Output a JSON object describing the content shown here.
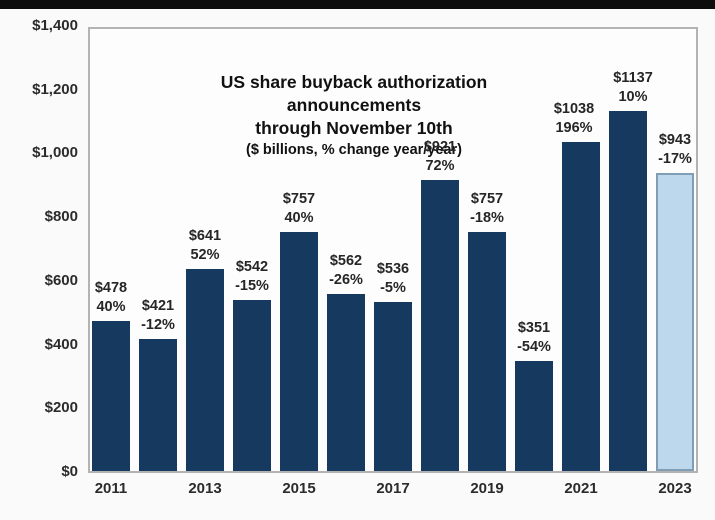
{
  "page": {
    "background": "#fafafa",
    "top_strip_color": "#0d0d0d"
  },
  "chart_data": {
    "type": "bar",
    "title": "US share buyback authorization announcements through November 10th",
    "subtitle": "($ billions, % change year/year)",
    "title_lines": [
      "US share buyback authorization",
      "announcements",
      "through November 10th",
      "($ billions, %  change year/year)"
    ],
    "categories": [
      "2011",
      "2012",
      "2013",
      "2014",
      "2015",
      "2016",
      "2017",
      "2018",
      "2019",
      "2020",
      "2021",
      "2022",
      "2023"
    ],
    "values": [
      478,
      421,
      641,
      542,
      757,
      562,
      536,
      921,
      757,
      351,
      1038,
      1137,
      943
    ],
    "value_labels": [
      "$478",
      "$421",
      "$641",
      "$542",
      "$757",
      "$562",
      "$536",
      "$921",
      "$757",
      "$351",
      "$1038",
      "$1137",
      "$943"
    ],
    "pct_change_labels": [
      "40%",
      "-12%",
      "52%",
      "-15%",
      "40%",
      "-26%",
      "-5%",
      "72%",
      "-18%",
      "-54%",
      "196%",
      "10%",
      "-17%"
    ],
    "x_tick_labels": [
      "2011",
      "2013",
      "2015",
      "2017",
      "2019",
      "2021",
      "2023"
    ],
    "y_ticks": [
      0,
      200,
      400,
      600,
      800,
      1000,
      1200,
      1400
    ],
    "y_tick_labels": [
      "$0",
      "$200",
      "$400",
      "$600",
      "$800",
      "$1,000",
      "$1,200",
      "$1,400"
    ],
    "ylim": [
      0,
      1400
    ],
    "grid": false,
    "legend": null,
    "highlight_index": 12,
    "colors": {
      "bar_fill": "#16395f",
      "highlight_fill": "#bdd7ec",
      "highlight_border": "#7f9db5",
      "plot_border": "#b3b3b3",
      "label_text": "#262626"
    }
  }
}
